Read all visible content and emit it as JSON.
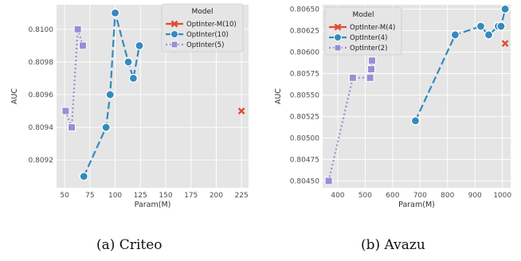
{
  "colors": {
    "panel_bg": "#E5E5E5",
    "grid": "#FFFFFF",
    "optinter_m": "#E24A33",
    "optinter": "#348ABD",
    "optinter_small": "#988ED5"
  },
  "captions": [
    "(a) Criteo",
    "(b) Avazu"
  ],
  "chart_data": [
    {
      "type": "scatter",
      "xlabel": "Param(M)",
      "ylabel": "AUC",
      "xlim": [
        42,
        232
      ],
      "ylim": [
        0.80903,
        0.81015
      ],
      "xticks": [
        50,
        75,
        100,
        125,
        150,
        175,
        200,
        225
      ],
      "yticks": [
        0.8092,
        0.8094,
        0.8096,
        0.8098,
        0.81
      ],
      "ytick_labels": [
        "0.8092",
        "0.8094",
        "0.8096",
        "0.8098",
        "0.8100"
      ],
      "grid": true,
      "legend": {
        "title": "Model",
        "placement": "top-right"
      },
      "series": [
        {
          "name": "OptInter-M(10)",
          "marker": "x",
          "line": "solid",
          "x": [
            225
          ],
          "y": [
            0.8095
          ]
        },
        {
          "name": "OptInter(10)",
          "marker": "circle",
          "line": "dashed",
          "x": [
            69,
            91,
            95,
            100,
            113,
            118,
            124
          ],
          "y": [
            0.8091,
            0.8094,
            0.8096,
            0.8101,
            0.8098,
            0.8097,
            0.8099
          ]
        },
        {
          "name": "OptInter(5)",
          "marker": "square",
          "line": "dotted",
          "x": [
            51,
            57,
            63,
            68
          ],
          "y": [
            0.8095,
            0.8094,
            0.81,
            0.8099
          ]
        }
      ]
    },
    {
      "type": "scatter",
      "xlabel": "Param(M)",
      "ylabel": "AUC",
      "xlim": [
        345,
        1030
      ],
      "ylim": [
        0.80442,
        0.80655
      ],
      "xticks": [
        400,
        500,
        600,
        700,
        800,
        900,
        1000
      ],
      "yticks": [
        0.8045,
        0.80475,
        0.805,
        0.80525,
        0.8055,
        0.80575,
        0.806,
        0.80625,
        0.8065
      ],
      "ytick_labels": [
        "0.80450",
        "0.80475",
        "0.80500",
        "0.80525",
        "0.80550",
        "0.80575",
        "0.80600",
        "0.80625",
        "0.80650"
      ],
      "grid": true,
      "legend": {
        "title": "Model",
        "placement": "top-left"
      },
      "series": [
        {
          "name": "OptInter-M(4)",
          "marker": "x",
          "line": "solid",
          "x": [
            1010
          ],
          "y": [
            0.8061
          ]
        },
        {
          "name": "OptInter(4)",
          "marker": "circle",
          "line": "dashed",
          "x": [
            683,
            828,
            921,
            950,
            985,
            995,
            1010
          ],
          "y": [
            0.8052,
            0.8062,
            0.8063,
            0.8062,
            0.8063,
            0.8063,
            0.8065
          ]
        },
        {
          "name": "OptInter(2)",
          "marker": "square",
          "line": "dotted",
          "x": [
            367,
            455,
            518,
            522,
            525
          ],
          "y": [
            0.8045,
            0.8057,
            0.8057,
            0.8058,
            0.8059
          ]
        }
      ]
    }
  ]
}
